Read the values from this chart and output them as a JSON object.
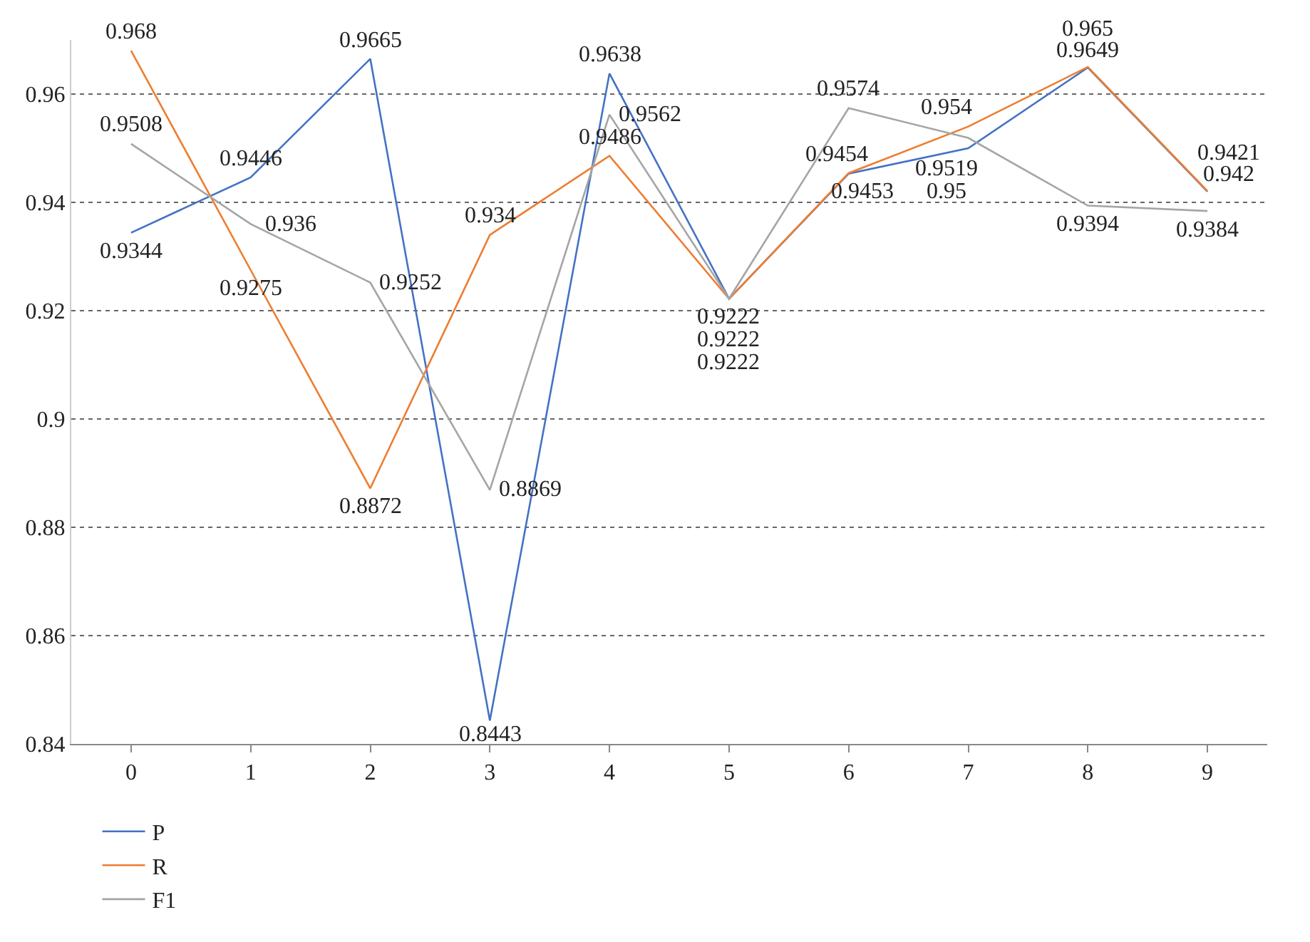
{
  "chart_data": {
    "type": "line",
    "categories": [
      "0",
      "1",
      "2",
      "3",
      "4",
      "5",
      "6",
      "7",
      "8",
      "9"
    ],
    "series": [
      {
        "name": "P",
        "color": "#4472c4",
        "values": [
          0.9344,
          0.9446,
          0.9665,
          0.8443,
          0.9638,
          0.9222,
          0.9453,
          0.95,
          0.9649,
          0.942
        ]
      },
      {
        "name": "R",
        "color": "#ed7d31",
        "values": [
          0.968,
          0.9275,
          0.8872,
          0.934,
          0.9486,
          0.9222,
          0.9454,
          0.954,
          0.965,
          0.9421
        ]
      },
      {
        "name": "F1",
        "color": "#a5a5a5",
        "values": [
          0.9508,
          0.936,
          0.9252,
          0.8869,
          0.9562,
          0.9222,
          0.9574,
          0.9519,
          0.9394,
          0.9384
        ]
      }
    ],
    "ylim": [
      0.84,
      0.97
    ],
    "yticks": [
      0.84,
      0.86,
      0.88,
      {
        "value": 0.9,
        "label": "0.9"
      },
      0.92,
      0.94,
      0.96
    ],
    "grid": "y",
    "legend": "bottom left",
    "data_labels": true,
    "marker": "none",
    "line_style": "solid"
  }
}
